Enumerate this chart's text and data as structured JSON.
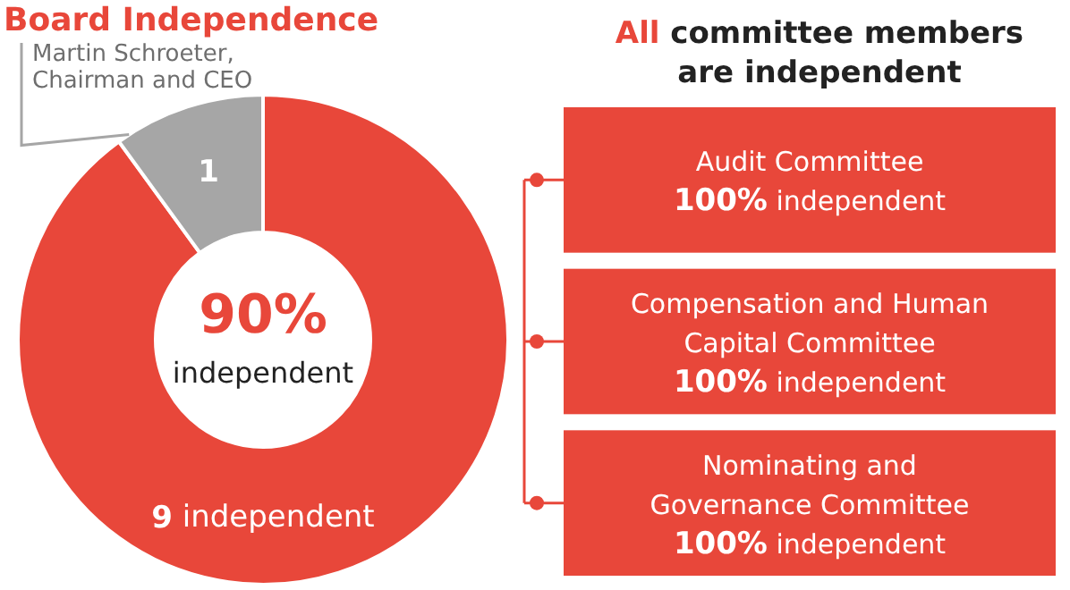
{
  "chart_data": [
    {
      "type": "donut",
      "title": "Board Independence",
      "categories": [
        null,
        "Martin Schroeter, Chairman and CEO"
      ],
      "values": [
        9,
        1
      ],
      "colors": [
        "#e8473a",
        "#a6a6a6"
      ],
      "value_labels": [
        "9 independent",
        "1"
      ],
      "annotations": [
        "90%",
        "independent"
      ]
    },
    {
      "type": "other",
      "title": "All committee members are independent",
      "annotations": [
        "Audit Committee\n100% independent",
        "Compensation and Human\nCapital Committee\n100% independent",
        "Nominating and\nGovernance Committee\n100% independent"
      ]
    }
  ]
}
